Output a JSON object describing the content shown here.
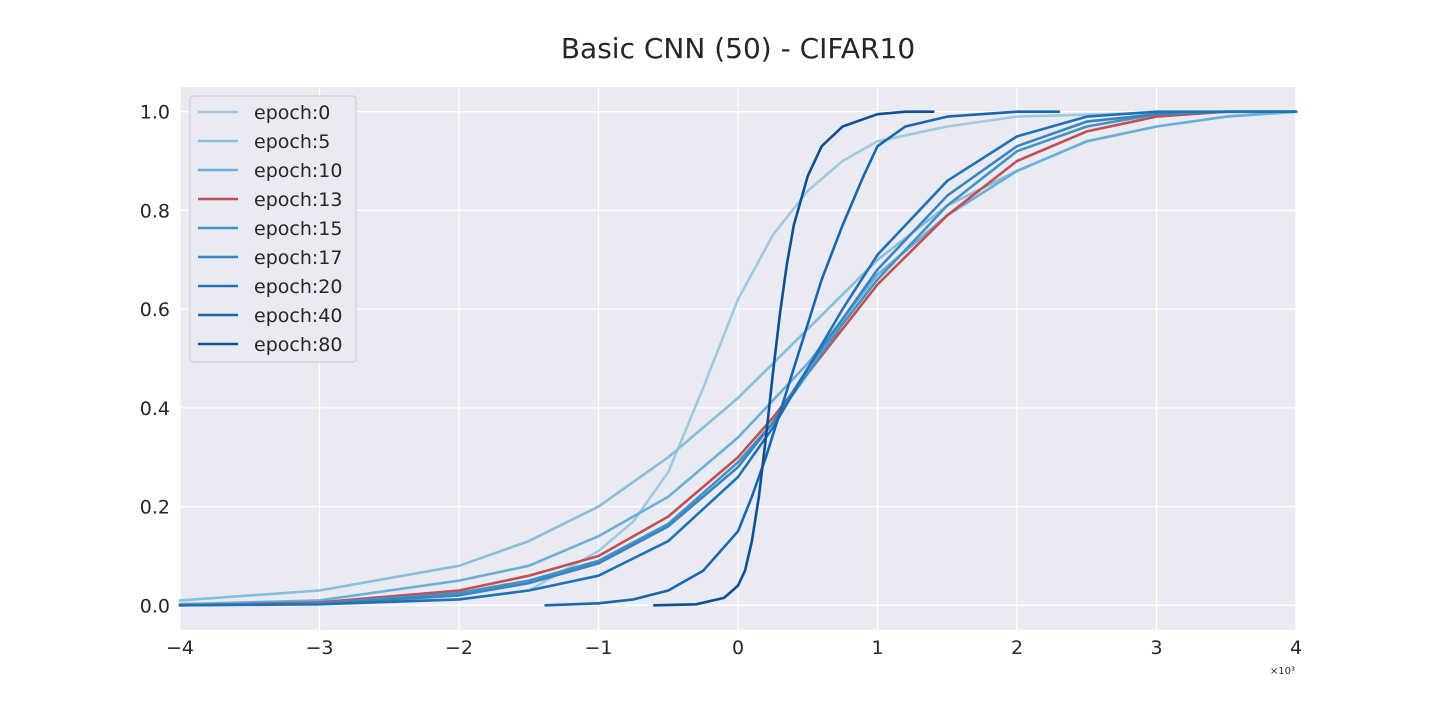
{
  "chart_data": {
    "type": "line",
    "title": "Basic CNN (50) - CIFAR10",
    "xlabel": "",
    "ylabel": "",
    "x_offset_label": "×10³",
    "xlim": [
      -4,
      4
    ],
    "ylim": [
      -0.05,
      1.05
    ],
    "xticks": [
      -4,
      -3,
      -2,
      -1,
      0,
      1,
      2,
      3,
      4
    ],
    "xtick_labels": [
      "−4",
      "−3",
      "−2",
      "−1",
      "0",
      "1",
      "2",
      "3",
      "4"
    ],
    "yticks": [
      0.0,
      0.2,
      0.4,
      0.6,
      0.8,
      1.0
    ],
    "ytick_labels": [
      "0.0",
      "0.2",
      "0.4",
      "0.6",
      "0.8",
      "1.0"
    ],
    "grid": true,
    "legend_position": "top-left",
    "background": "#eaeaf2",
    "series": [
      {
        "name": "epoch:0",
        "color": "#9ecae1",
        "x": [
          -4,
          -3,
          -2,
          -1.5,
          -1,
          -0.75,
          -0.5,
          -0.25,
          0,
          0.25,
          0.5,
          0.75,
          1,
          1.5,
          2,
          3,
          4
        ],
        "y": [
          0.003,
          0.005,
          0.012,
          0.03,
          0.11,
          0.17,
          0.27,
          0.44,
          0.62,
          0.75,
          0.84,
          0.9,
          0.94,
          0.97,
          0.99,
          0.998,
          1.0
        ]
      },
      {
        "name": "epoch:5",
        "color": "#88bedc",
        "x": [
          -4,
          -3,
          -2,
          -1.5,
          -1,
          -0.5,
          0,
          0.5,
          1,
          1.5,
          2,
          2.5,
          3,
          3.5,
          4
        ],
        "y": [
          0.01,
          0.03,
          0.08,
          0.13,
          0.2,
          0.3,
          0.42,
          0.56,
          0.7,
          0.81,
          0.88,
          0.94,
          0.97,
          0.99,
          1.0
        ]
      },
      {
        "name": "epoch:10",
        "color": "#6baed6",
        "x": [
          -4,
          -3,
          -2,
          -1.5,
          -1,
          -0.5,
          0,
          0.5,
          1,
          1.5,
          2,
          2.5,
          3,
          3.5,
          4
        ],
        "y": [
          0.002,
          0.01,
          0.05,
          0.08,
          0.14,
          0.22,
          0.34,
          0.49,
          0.67,
          0.79,
          0.88,
          0.94,
          0.97,
          0.99,
          1.0
        ]
      },
      {
        "name": "epoch:13",
        "color": "#c44e52",
        "x": [
          -4,
          -3,
          -2,
          -1.5,
          -1,
          -0.5,
          0,
          0.25,
          0.5,
          0.75,
          1,
          1.5,
          2,
          2.5,
          3,
          3.5,
          4
        ],
        "y": [
          0.0,
          0.006,
          0.03,
          0.06,
          0.1,
          0.18,
          0.3,
          0.38,
          0.47,
          0.56,
          0.65,
          0.79,
          0.9,
          0.96,
          0.99,
          1.0,
          1.0
        ]
      },
      {
        "name": "epoch:15",
        "color": "#4292c6",
        "x": [
          -4,
          -3,
          -2,
          -1.5,
          -1,
          -0.5,
          0,
          0.25,
          0.5,
          0.75,
          1,
          1.5,
          2,
          2.5,
          3,
          3.5,
          4
        ],
        "y": [
          0.0,
          0.004,
          0.025,
          0.05,
          0.09,
          0.165,
          0.29,
          0.37,
          0.47,
          0.57,
          0.66,
          0.81,
          0.92,
          0.97,
          0.995,
          1.0,
          1.0
        ]
      },
      {
        "name": "epoch:17",
        "color": "#3a84c0",
        "x": [
          -4,
          -3,
          -2,
          -1.5,
          -1,
          -0.5,
          0,
          0.25,
          0.5,
          0.75,
          1,
          1.5,
          2,
          2.5,
          3,
          3.5,
          4
        ],
        "y": [
          0.0,
          0.003,
          0.02,
          0.045,
          0.085,
          0.16,
          0.28,
          0.37,
          0.48,
          0.58,
          0.68,
          0.83,
          0.93,
          0.98,
          0.995,
          1.0,
          1.0
        ]
      },
      {
        "name": "epoch:20",
        "color": "#2171b5",
        "x": [
          -4,
          -3,
          -2,
          -1.5,
          -1,
          -0.5,
          0,
          0.25,
          0.5,
          0.75,
          1,
          1.5,
          2,
          2.5,
          3,
          3.5,
          4
        ],
        "y": [
          0.0,
          0.002,
          0.012,
          0.03,
          0.06,
          0.13,
          0.26,
          0.36,
          0.48,
          0.6,
          0.71,
          0.86,
          0.95,
          0.99,
          1.0,
          1.0,
          1.0
        ]
      },
      {
        "name": "epoch:40",
        "color": "#1866ac",
        "x": [
          -1.38,
          -1,
          -0.75,
          -0.5,
          -0.25,
          0,
          0.1,
          0.2,
          0.3,
          0.4,
          0.5,
          0.6,
          0.75,
          0.9,
          1,
          1.2,
          1.5,
          2,
          2.3
        ],
        "y": [
          0.0,
          0.004,
          0.012,
          0.03,
          0.07,
          0.15,
          0.22,
          0.3,
          0.39,
          0.48,
          0.57,
          0.66,
          0.77,
          0.87,
          0.93,
          0.97,
          0.99,
          1.0,
          1.0
        ]
      },
      {
        "name": "epoch:80",
        "color": "#0f4f93",
        "x": [
          -0.6,
          -0.3,
          -0.1,
          0,
          0.05,
          0.1,
          0.15,
          0.2,
          0.25,
          0.3,
          0.35,
          0.4,
          0.5,
          0.6,
          0.75,
          1,
          1.2,
          1.4
        ],
        "y": [
          0.0,
          0.002,
          0.015,
          0.04,
          0.07,
          0.13,
          0.22,
          0.34,
          0.47,
          0.59,
          0.69,
          0.77,
          0.87,
          0.93,
          0.97,
          0.995,
          1.0,
          1.0
        ]
      }
    ]
  }
}
